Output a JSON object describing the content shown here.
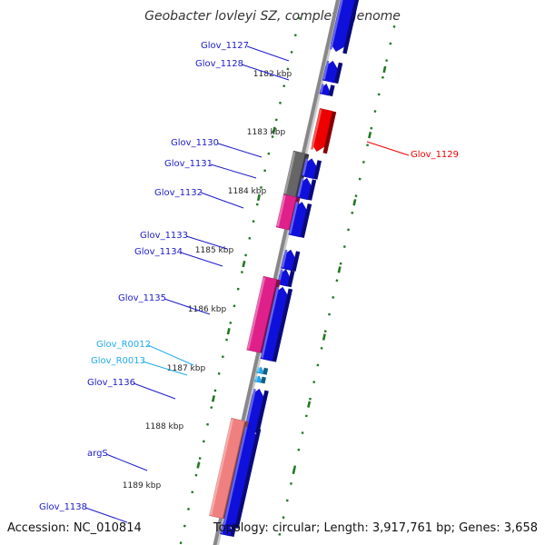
{
  "title": "Geobacter lovleyi SZ, complete genome",
  "footer": {
    "accession": "Accession: NC_010814",
    "topology": "Topology: circular; Length: 3,917,761 bp; Genes: 3,658"
  },
  "colors": {
    "forward_cds": "#1010dd",
    "reverse_cds": "#e0208a",
    "selected": "#ee0000",
    "pseudo": "#666666",
    "rna": "#22aaee",
    "trna_highlight": "#f08080",
    "tick": "#227722",
    "backbone": "#888888",
    "label": "#1a1acc",
    "label_rna": "#22aaee"
  },
  "kbp_labels": [
    "1182 kbp",
    "1183 kbp",
    "1184 kbp",
    "1185 kbp",
    "1186 kbp",
    "1187 kbp",
    "1188 kbp",
    "1189 kbp"
  ],
  "gene_labels": [
    {
      "id": "Glov_1127",
      "kind": "gene"
    },
    {
      "id": "Glov_1128",
      "kind": "gene"
    },
    {
      "id": "Glov_1129",
      "kind": "selected"
    },
    {
      "id": "Glov_1130",
      "kind": "gene"
    },
    {
      "id": "Glov_1131",
      "kind": "gene"
    },
    {
      "id": "Glov_1132",
      "kind": "gene"
    },
    {
      "id": "Glov_1133",
      "kind": "gene"
    },
    {
      "id": "Glov_1134",
      "kind": "gene"
    },
    {
      "id": "Glov_1135",
      "kind": "gene"
    },
    {
      "id": "Glov_R0012",
      "kind": "rna"
    },
    {
      "id": "Glov_R0013",
      "kind": "rna"
    },
    {
      "id": "Glov_1136",
      "kind": "gene"
    },
    {
      "id": "argS",
      "kind": "gene"
    },
    {
      "id": "Glov_1138",
      "kind": "gene"
    }
  ]
}
